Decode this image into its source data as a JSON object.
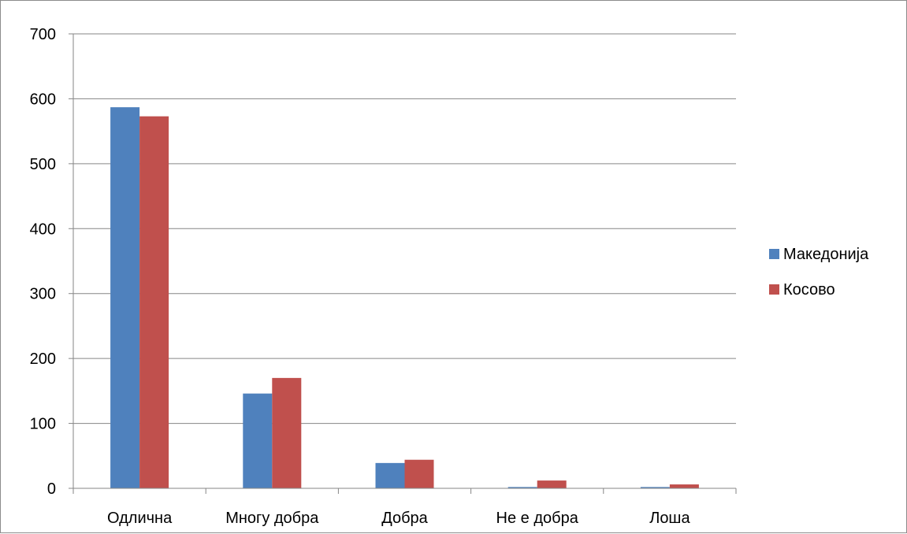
{
  "chart_data": {
    "type": "bar",
    "categories": [
      "Одлична",
      "Многу добра",
      "Добра",
      "Не е добра",
      "Лоша"
    ],
    "series": [
      {
        "name": "Македонија",
        "values": [
          587,
          146,
          39,
          2,
          2
        ],
        "color": "#4F81BD"
      },
      {
        "name": "Косово",
        "values": [
          573,
          170,
          44,
          12,
          6
        ],
        "color": "#C0504D"
      }
    ],
    "ylim": [
      0,
      700
    ],
    "yticks": [
      "0",
      "100",
      "200",
      "300",
      "400",
      "500",
      "600",
      "700"
    ],
    "grid": true,
    "legend_position": "right"
  }
}
